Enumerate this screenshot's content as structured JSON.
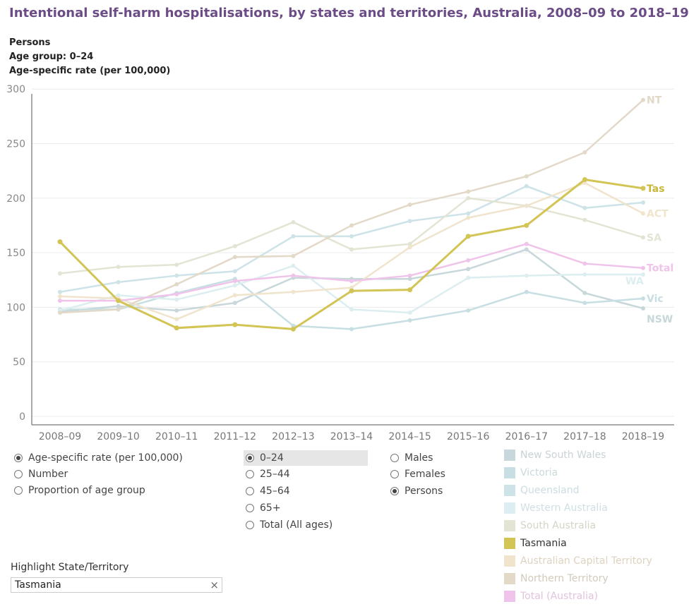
{
  "title": "Intentional self-harm hospitalisations, by states and territories, Australia, 2008–09 to 2018–19",
  "subtitle_lines": [
    "Persons",
    "Age group: 0–24",
    "Age-specific rate (per 100,000)"
  ],
  "chart_data": {
    "type": "line",
    "categories": [
      "2008–09",
      "2009–10",
      "2010–11",
      "2011–12",
      "2012–13",
      "2013–14",
      "2014–15",
      "2015–16",
      "2016–17",
      "2017–18",
      "2018–19"
    ],
    "ylim": [
      0,
      300
    ],
    "yticks": [
      0,
      50,
      100,
      150,
      200,
      250,
      300
    ],
    "grid": true,
    "highlighted": "Tasmania",
    "series": [
      {
        "name": "New South Wales",
        "end_label": "NSW",
        "color": "#c7d7da",
        "values": [
          96,
          101,
          97,
          104,
          127,
          126,
          126,
          135,
          153,
          113,
          99
        ]
      },
      {
        "name": "Victoria",
        "end_label": "Vic",
        "color": "#c7dfe2",
        "values": [
          98,
          98,
          113,
          126,
          83,
          80,
          88,
          97,
          114,
          104,
          108
        ]
      },
      {
        "name": "Queensland",
        "end_label": "",
        "color": "#cde3e8",
        "values": [
          114,
          123,
          129,
          133,
          165,
          165,
          179,
          186,
          211,
          191,
          196
        ]
      },
      {
        "name": "Western Australia",
        "end_label": "WA",
        "color": "#ddeef0",
        "values": [
          97,
          111,
          107,
          120,
          138,
          98,
          95,
          127,
          129,
          130,
          130
        ]
      },
      {
        "name": "South Australia",
        "end_label": "SA",
        "color": "#e4e4d4",
        "values": [
          131,
          137,
          139,
          156,
          178,
          153,
          158,
          200,
          193,
          180,
          164
        ]
      },
      {
        "name": "Tasmania",
        "end_label": "Tas",
        "color": "#d2c455",
        "values": [
          160,
          106,
          81,
          84,
          80,
          115,
          116,
          165,
          175,
          217,
          209
        ]
      },
      {
        "name": "Australian Capital Territory",
        "end_label": "ACT",
        "color": "#f0e4cd",
        "values": [
          110,
          108,
          89,
          111,
          114,
          118,
          155,
          182,
          193,
          214,
          186
        ]
      },
      {
        "name": "Northern Territory",
        "end_label": "NT",
        "color": "#e2d9c8",
        "values": [
          95,
          98,
          121,
          146,
          147,
          175,
          194,
          206,
          220,
          242,
          290
        ]
      },
      {
        "name": "Total (Australia)",
        "end_label": "Total",
        "color": "#efc3ea",
        "values": [
          106,
          106,
          112,
          124,
          129,
          124,
          129,
          143,
          158,
          140,
          136
        ]
      }
    ]
  },
  "measure_options": [
    {
      "label": "Age-specific rate (per 100,000)",
      "selected": true
    },
    {
      "label": "Number",
      "selected": false
    },
    {
      "label": "Proportion of age group",
      "selected": false
    }
  ],
  "age_options": [
    {
      "label": "0–24",
      "selected": true
    },
    {
      "label": "25–44",
      "selected": false
    },
    {
      "label": "45–64",
      "selected": false
    },
    {
      "label": "65+",
      "selected": false
    },
    {
      "label": "Total (All ages)",
      "selected": false
    }
  ],
  "sex_options": [
    {
      "label": "Males",
      "selected": false
    },
    {
      "label": "Females",
      "selected": false
    },
    {
      "label": "Persons",
      "selected": true
    }
  ],
  "legend": [
    {
      "label": "New South Wales",
      "swatch": "#c7d7da",
      "text_color": "#c9d3d5"
    },
    {
      "label": "Victoria",
      "swatch": "#c7dfe2",
      "text_color": "#c9d9dc"
    },
    {
      "label": "Queensland",
      "swatch": "#cde3e8",
      "text_color": "#cbdde1"
    },
    {
      "label": "Western Australia",
      "swatch": "#ddeef0",
      "text_color": "#cfdfe2"
    },
    {
      "label": "South Australia",
      "swatch": "#e4e4d4",
      "text_color": "#d4d4c6"
    },
    {
      "label": "Tasmania",
      "swatch": "#d2c455",
      "text_color": "#333333"
    },
    {
      "label": "Australian Capital Territory",
      "swatch": "#f0e4cd",
      "text_color": "#ddd3c0"
    },
    {
      "label": "Northern Territory",
      "swatch": "#e2d9c8",
      "text_color": "#d2cabb"
    },
    {
      "label": "Total (Australia)",
      "swatch": "#efc3ea",
      "text_color": "#e2c3de"
    }
  ],
  "highlight": {
    "label": "Highlight State/Territory",
    "value": "Tasmania",
    "clear_icon": "×"
  }
}
